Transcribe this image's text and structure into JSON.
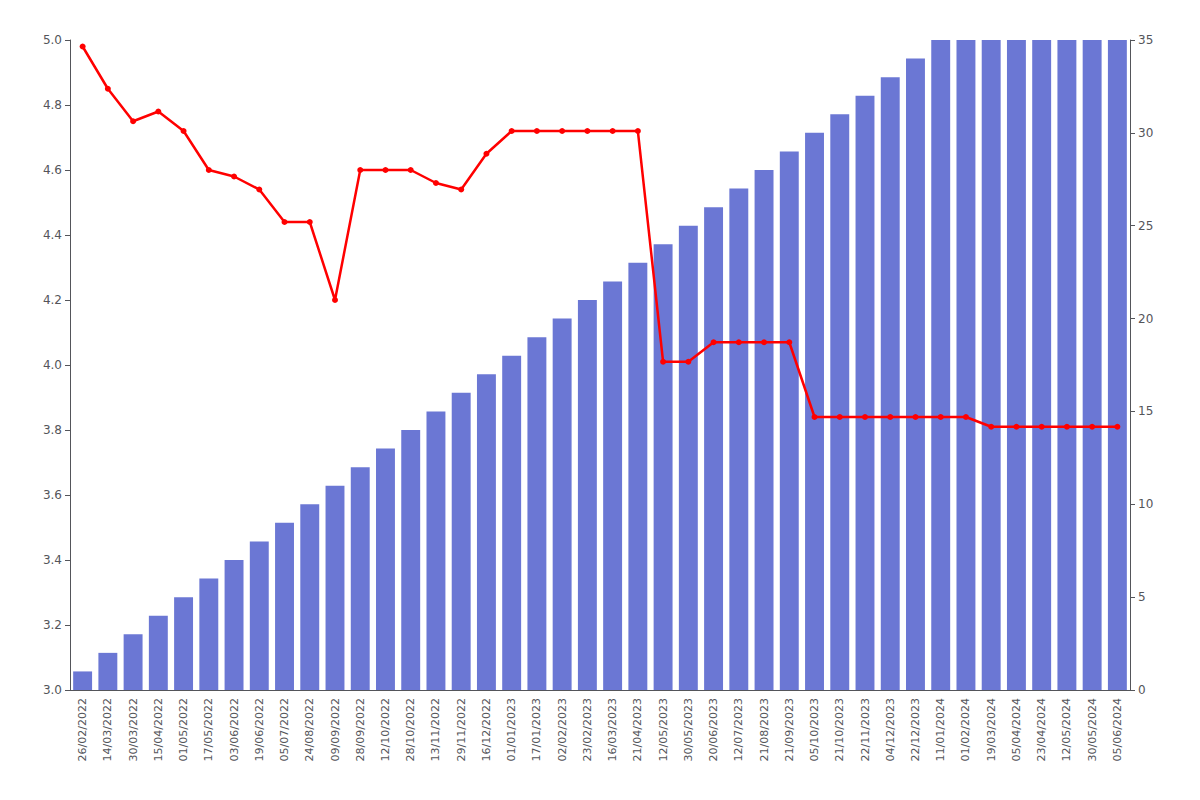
{
  "chart_data": {
    "type": "combo",
    "categories": [
      "26/02/2022",
      "14/03/2022",
      "30/03/2022",
      "15/04/2022",
      "01/05/2022",
      "17/05/2022",
      "03/06/2022",
      "19/06/2022",
      "05/07/2022",
      "24/08/2022",
      "09/09/2022",
      "28/09/2022",
      "12/10/2022",
      "28/10/2022",
      "13/11/2022",
      "29/11/2022",
      "16/12/2022",
      "01/01/2023",
      "17/01/2023",
      "02/02/2023",
      "23/02/2023",
      "16/03/2023",
      "21/04/2023",
      "12/05/2023",
      "30/05/2023",
      "20/06/2023",
      "12/07/2023",
      "21/08/2023",
      "21/09/2023",
      "05/10/2023",
      "21/10/2023",
      "22/11/2023",
      "04/12/2023",
      "22/12/2023",
      "11/01/2024",
      "01/02/2024",
      "19/03/2024",
      "05/04/2024",
      "23/04/2024",
      "12/05/2024",
      "30/05/2024",
      "05/06/2024"
    ],
    "series": [
      {
        "type": "bar",
        "axis": "y2",
        "color": "#6b77d4",
        "values": [
          1,
          2,
          3,
          4,
          5,
          6,
          7,
          8,
          9,
          10,
          11,
          12,
          13,
          14,
          15,
          16,
          17,
          18,
          19,
          20,
          21,
          22,
          23,
          24,
          25,
          26,
          27,
          28,
          29,
          30,
          31,
          32,
          33,
          34,
          35,
          35,
          35,
          35,
          35,
          35,
          35,
          35
        ]
      },
      {
        "type": "line",
        "color": "#ff0000",
        "marker": "circle",
        "values": [
          4.98,
          4.85,
          4.75,
          4.78,
          4.72,
          4.6,
          4.58,
          4.54,
          4.44,
          4.44,
          4.2,
          4.6,
          4.6,
          4.6,
          4.56,
          4.54,
          4.65,
          4.72,
          4.72,
          4.72,
          4.72,
          4.72,
          4.72,
          4.01,
          4.01,
          4.07,
          4.07,
          4.07,
          4.07,
          3.84,
          3.84,
          3.84,
          3.84,
          3.84,
          3.84,
          3.84,
          3.81,
          3.81,
          3.81,
          3.81,
          3.81,
          3.81
        ]
      }
    ],
    "ylim": [
      3.0,
      5.0
    ],
    "yticks": [
      {
        "value": 3,
        "label": "3.0"
      },
      3.2,
      3.4,
      3.6,
      3.8,
      {
        "value": 4,
        "label": "4.0"
      },
      4.2,
      4.4,
      4.6,
      4.8,
      {
        "value": 5,
        "label": "5.0"
      }
    ],
    "y2lim": [
      0,
      35
    ],
    "y2ticks": [
      0,
      5,
      10,
      15,
      20,
      25,
      30,
      35
    ],
    "grid": false
  }
}
